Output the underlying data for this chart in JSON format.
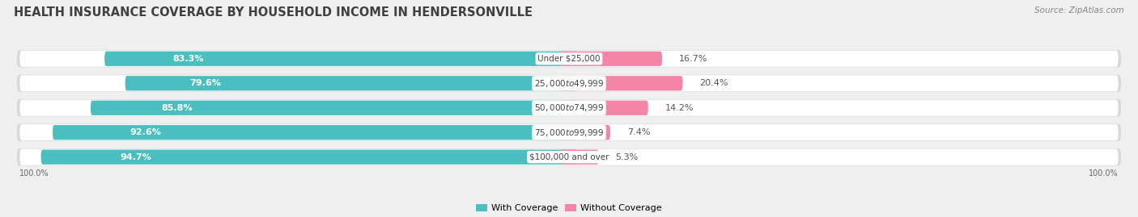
{
  "title": "HEALTH INSURANCE COVERAGE BY HOUSEHOLD INCOME IN HENDERSONVILLE",
  "source": "Source: ZipAtlas.com",
  "categories": [
    "Under $25,000",
    "$25,000 to $49,999",
    "$50,000 to $74,999",
    "$75,000 to $99,999",
    "$100,000 and over"
  ],
  "with_coverage": [
    83.3,
    79.6,
    85.8,
    92.6,
    94.7
  ],
  "without_coverage": [
    16.7,
    20.4,
    14.2,
    7.4,
    5.3
  ],
  "color_coverage": "#4bbfbf",
  "color_without": "#f484a8",
  "bg_color": "#efefef",
  "bar_bg": "#ffffff",
  "bar_shadow": "#d8d8d8",
  "title_fontsize": 10.5,
  "label_fontsize": 8.0,
  "source_fontsize": 7.5,
  "legend_fontsize": 8.0
}
